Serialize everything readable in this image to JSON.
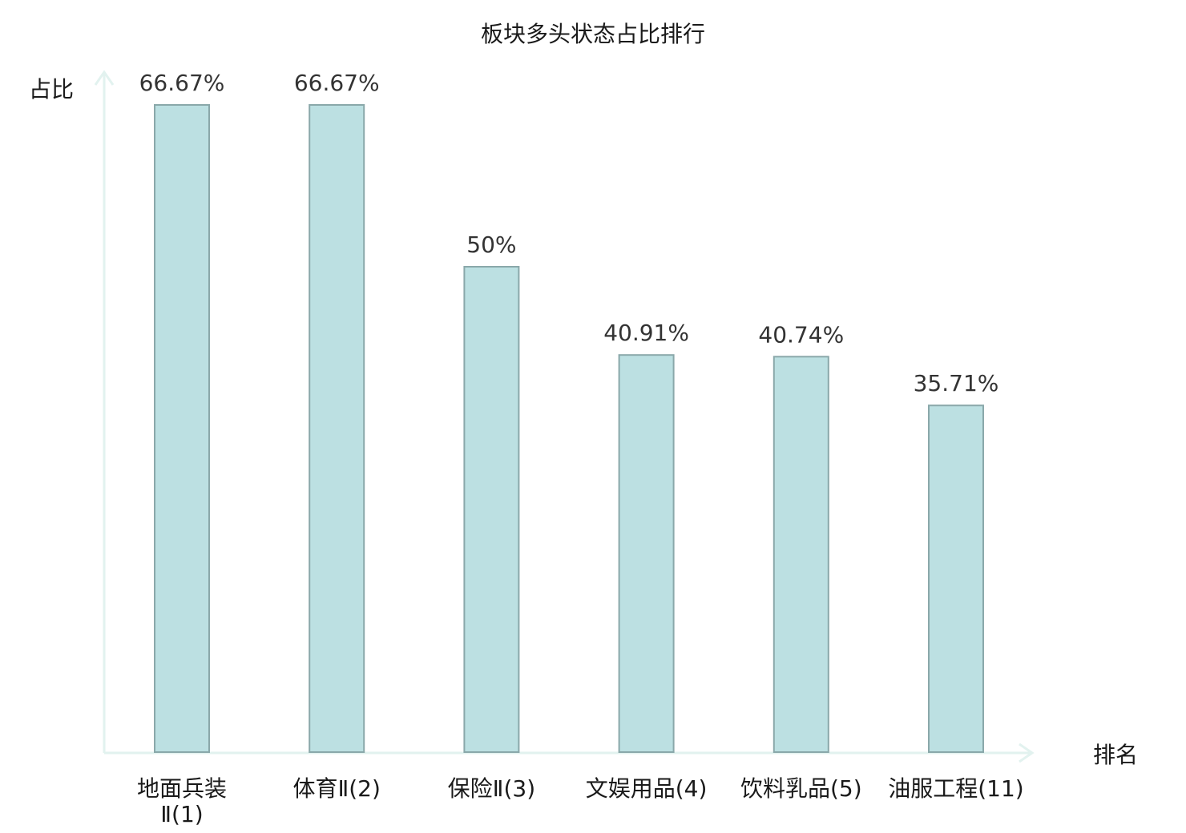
{
  "chart_data": {
    "type": "bar",
    "title": "板块多头状态占比排行",
    "ylabel": "占比",
    "xlabel": "排名",
    "categories": [
      "地面兵装Ⅱ(1)",
      "体育Ⅱ(2)",
      "保险Ⅱ(3)",
      "文娱用品(4)",
      "饮料乳品(5)",
      "油服工程(11)"
    ],
    "values": [
      66.67,
      66.67,
      50,
      40.91,
      40.74,
      35.71
    ],
    "value_labels": [
      "66.67%",
      "66.67%",
      "50%",
      "40.91%",
      "40.74%",
      "35.71%"
    ],
    "highlight_index": 5,
    "ylim": [
      0,
      66.67
    ],
    "grid": false,
    "colors": {
      "bar_fill": "#bce0e2",
      "bar_stroke": "#8aa8aa",
      "axis": "#e2f2ef",
      "highlight_text": "#e31a1a",
      "text": "#1a1a1a",
      "value_text": "#333333"
    }
  }
}
